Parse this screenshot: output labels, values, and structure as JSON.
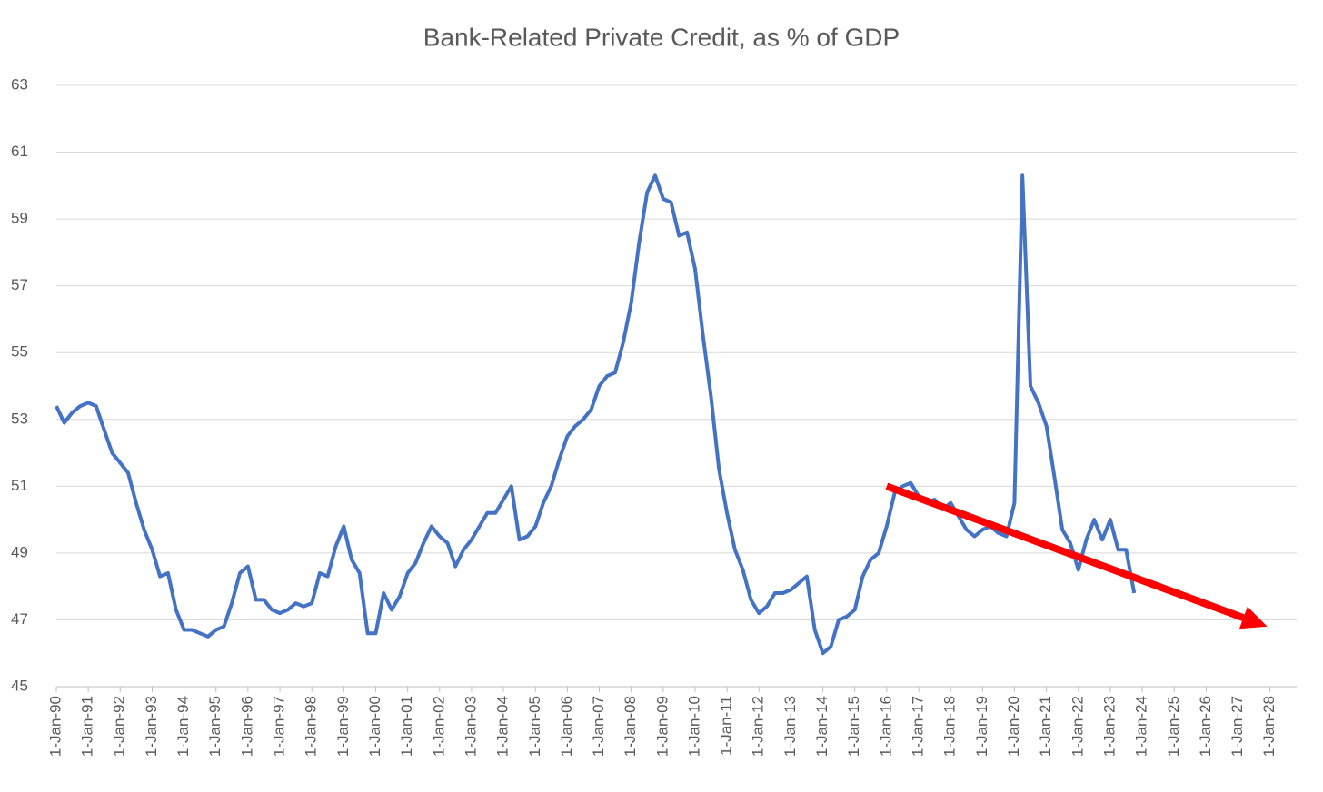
{
  "chart_data": {
    "type": "line",
    "title": "Bank-Related Private Credit, as % of GDP",
    "x": [
      "1990-01-01",
      "1990-04-01",
      "1990-07-01",
      "1990-10-01",
      "1991-01-01",
      "1991-04-01",
      "1991-07-01",
      "1991-10-01",
      "1992-01-01",
      "1992-04-01",
      "1992-07-01",
      "1992-10-01",
      "1993-01-01",
      "1993-04-01",
      "1993-07-01",
      "1993-10-01",
      "1994-01-01",
      "1994-04-01",
      "1994-07-01",
      "1994-10-01",
      "1995-01-01",
      "1995-04-01",
      "1995-07-01",
      "1995-10-01",
      "1996-01-01",
      "1996-04-01",
      "1996-07-01",
      "1996-10-01",
      "1997-01-01",
      "1997-04-01",
      "1997-07-01",
      "1997-10-01",
      "1998-01-01",
      "1998-04-01",
      "1998-07-01",
      "1998-10-01",
      "1999-01-01",
      "1999-04-01",
      "1999-07-01",
      "1999-10-01",
      "2000-01-01",
      "2000-04-01",
      "2000-07-01",
      "2000-10-01",
      "2001-01-01",
      "2001-04-01",
      "2001-07-01",
      "2001-10-01",
      "2002-01-01",
      "2002-04-01",
      "2002-07-01",
      "2002-10-01",
      "2003-01-01",
      "2003-04-01",
      "2003-07-01",
      "2003-10-01",
      "2004-01-01",
      "2004-04-01",
      "2004-07-01",
      "2004-10-01",
      "2005-01-01",
      "2005-04-01",
      "2005-07-01",
      "2005-10-01",
      "2006-01-01",
      "2006-04-01",
      "2006-07-01",
      "2006-10-01",
      "2007-01-01",
      "2007-04-01",
      "2007-07-01",
      "2007-10-01",
      "2008-01-01",
      "2008-04-01",
      "2008-07-01",
      "2008-10-01",
      "2009-01-01",
      "2009-04-01",
      "2009-07-01",
      "2009-10-01",
      "2010-01-01",
      "2010-04-01",
      "2010-07-01",
      "2010-10-01",
      "2011-01-01",
      "2011-04-01",
      "2011-07-01",
      "2011-10-01",
      "2012-01-01",
      "2012-04-01",
      "2012-07-01",
      "2012-10-01",
      "2013-01-01",
      "2013-04-01",
      "2013-07-01",
      "2013-10-01",
      "2014-01-01",
      "2014-04-01",
      "2014-07-01",
      "2014-10-01",
      "2015-01-01",
      "2015-04-01",
      "2015-07-01",
      "2015-10-01",
      "2016-01-01",
      "2016-04-01",
      "2016-07-01",
      "2016-10-01",
      "2017-01-01",
      "2017-04-01",
      "2017-07-01",
      "2017-10-01",
      "2018-01-01",
      "2018-04-01",
      "2018-07-01",
      "2018-10-01",
      "2019-01-01",
      "2019-04-01",
      "2019-07-01",
      "2019-10-01",
      "2020-01-01",
      "2020-04-01",
      "2020-07-01",
      "2020-10-01",
      "2021-01-01",
      "2021-04-01",
      "2021-07-01",
      "2021-10-01",
      "2022-01-01",
      "2022-04-01",
      "2022-07-01",
      "2022-10-01",
      "2023-01-01",
      "2023-04-01",
      "2023-07-01",
      "2023-10-01"
    ],
    "series": [
      {
        "color": "#4472c4",
        "values": [
          53.4,
          52.9,
          53.2,
          53.4,
          53.5,
          53.4,
          52.7,
          52.0,
          51.7,
          51.4,
          50.5,
          49.7,
          49.1,
          48.3,
          48.4,
          47.3,
          46.7,
          46.7,
          46.6,
          46.5,
          46.7,
          46.8,
          47.5,
          48.4,
          48.6,
          47.6,
          47.6,
          47.3,
          47.2,
          47.3,
          47.5,
          47.4,
          47.5,
          48.4,
          48.3,
          49.2,
          49.8,
          48.8,
          48.4,
          46.6,
          46.6,
          47.8,
          47.3,
          47.7,
          48.4,
          48.7,
          49.3,
          49.8,
          49.5,
          49.3,
          48.6,
          49.1,
          49.4,
          49.8,
          50.2,
          50.2,
          50.6,
          51.0,
          49.4,
          49.5,
          49.8,
          50.5,
          51.0,
          51.8,
          52.5,
          52.8,
          53.0,
          53.3,
          54.0,
          54.3,
          54.4,
          55.3,
          56.5,
          58.3,
          59.8,
          60.3,
          59.6,
          59.5,
          58.5,
          58.6,
          57.5,
          55.5,
          53.7,
          51.5,
          50.2,
          49.1,
          48.5,
          47.6,
          47.2,
          47.4,
          47.8,
          47.8,
          47.9,
          48.1,
          48.3,
          46.7,
          46.0,
          46.2,
          47.0,
          47.1,
          47.3,
          48.3,
          48.8,
          49.0,
          49.8,
          50.8,
          51.0,
          51.1,
          50.7,
          50.5,
          50.6,
          50.3,
          50.5,
          50.1,
          49.7,
          49.5,
          49.7,
          49.8,
          49.6,
          49.5,
          50.5,
          60.3,
          54.0,
          53.5,
          52.8,
          51.3,
          49.7,
          49.3,
          48.5,
          49.4,
          50.0,
          49.4,
          50.0,
          49.1,
          49.1,
          47.8
        ]
      }
    ],
    "xlim": [
      "1990-01-01",
      "2028-11-01"
    ],
    "xticks": [
      {
        "value": "1990-01-01",
        "label": "1-Jan-90"
      },
      {
        "value": "1991-01-01",
        "label": "1-Jan-91"
      },
      {
        "value": "1992-01-01",
        "label": "1-Jan-92"
      },
      {
        "value": "1993-01-01",
        "label": "1-Jan-93"
      },
      {
        "value": "1994-01-01",
        "label": "1-Jan-94"
      },
      {
        "value": "1995-01-01",
        "label": "1-Jan-95"
      },
      {
        "value": "1996-01-01",
        "label": "1-Jan-96"
      },
      {
        "value": "1997-01-01",
        "label": "1-Jan-97"
      },
      {
        "value": "1998-01-01",
        "label": "1-Jan-98"
      },
      {
        "value": "1999-01-01",
        "label": "1-Jan-99"
      },
      {
        "value": "2000-01-01",
        "label": "1-Jan-00"
      },
      {
        "value": "2001-01-01",
        "label": "1-Jan-01"
      },
      {
        "value": "2002-01-01",
        "label": "1-Jan-02"
      },
      {
        "value": "2003-01-01",
        "label": "1-Jan-03"
      },
      {
        "value": "2004-01-01",
        "label": "1-Jan-04"
      },
      {
        "value": "2005-01-01",
        "label": "1-Jan-05"
      },
      {
        "value": "2006-01-01",
        "label": "1-Jan-06"
      },
      {
        "value": "2007-01-01",
        "label": "1-Jan-07"
      },
      {
        "value": "2008-01-01",
        "label": "1-Jan-08"
      },
      {
        "value": "2009-01-01",
        "label": "1-Jan-09"
      },
      {
        "value": "2010-01-01",
        "label": "1-Jan-10"
      },
      {
        "value": "2011-01-01",
        "label": "1-Jan-11"
      },
      {
        "value": "2012-01-01",
        "label": "1-Jan-12"
      },
      {
        "value": "2013-01-01",
        "label": "1-Jan-13"
      },
      {
        "value": "2014-01-01",
        "label": "1-Jan-14"
      },
      {
        "value": "2015-01-01",
        "label": "1-Jan-15"
      },
      {
        "value": "2016-01-01",
        "label": "1-Jan-16"
      },
      {
        "value": "2017-01-01",
        "label": "1-Jan-17"
      },
      {
        "value": "2018-01-01",
        "label": "1-Jan-18"
      },
      {
        "value": "2019-01-01",
        "label": "1-Jan-19"
      },
      {
        "value": "2020-01-01",
        "label": "1-Jan-20"
      },
      {
        "value": "2021-01-01",
        "label": "1-Jan-21"
      },
      {
        "value": "2022-01-01",
        "label": "1-Jan-22"
      },
      {
        "value": "2023-01-01",
        "label": "1-Jan-23"
      },
      {
        "value": "2024-01-01",
        "label": "1-Jan-24"
      },
      {
        "value": "2025-01-01",
        "label": "1-Jan-25"
      },
      {
        "value": "2026-01-01",
        "label": "1-Jan-26"
      },
      {
        "value": "2027-01-01",
        "label": "1-Jan-27"
      },
      {
        "value": "2028-01-01",
        "label": "1-Jan-28"
      }
    ],
    "ylim": [
      45,
      63
    ],
    "yticks": [
      45,
      47,
      49,
      51,
      53,
      55,
      57,
      59,
      61,
      63
    ],
    "grid": true,
    "arrow": {
      "x": [
        "2016-01-01",
        "2027-12-01"
      ],
      "y": [
        51.0,
        46.8
      ],
      "color": "#ff0000"
    }
  }
}
